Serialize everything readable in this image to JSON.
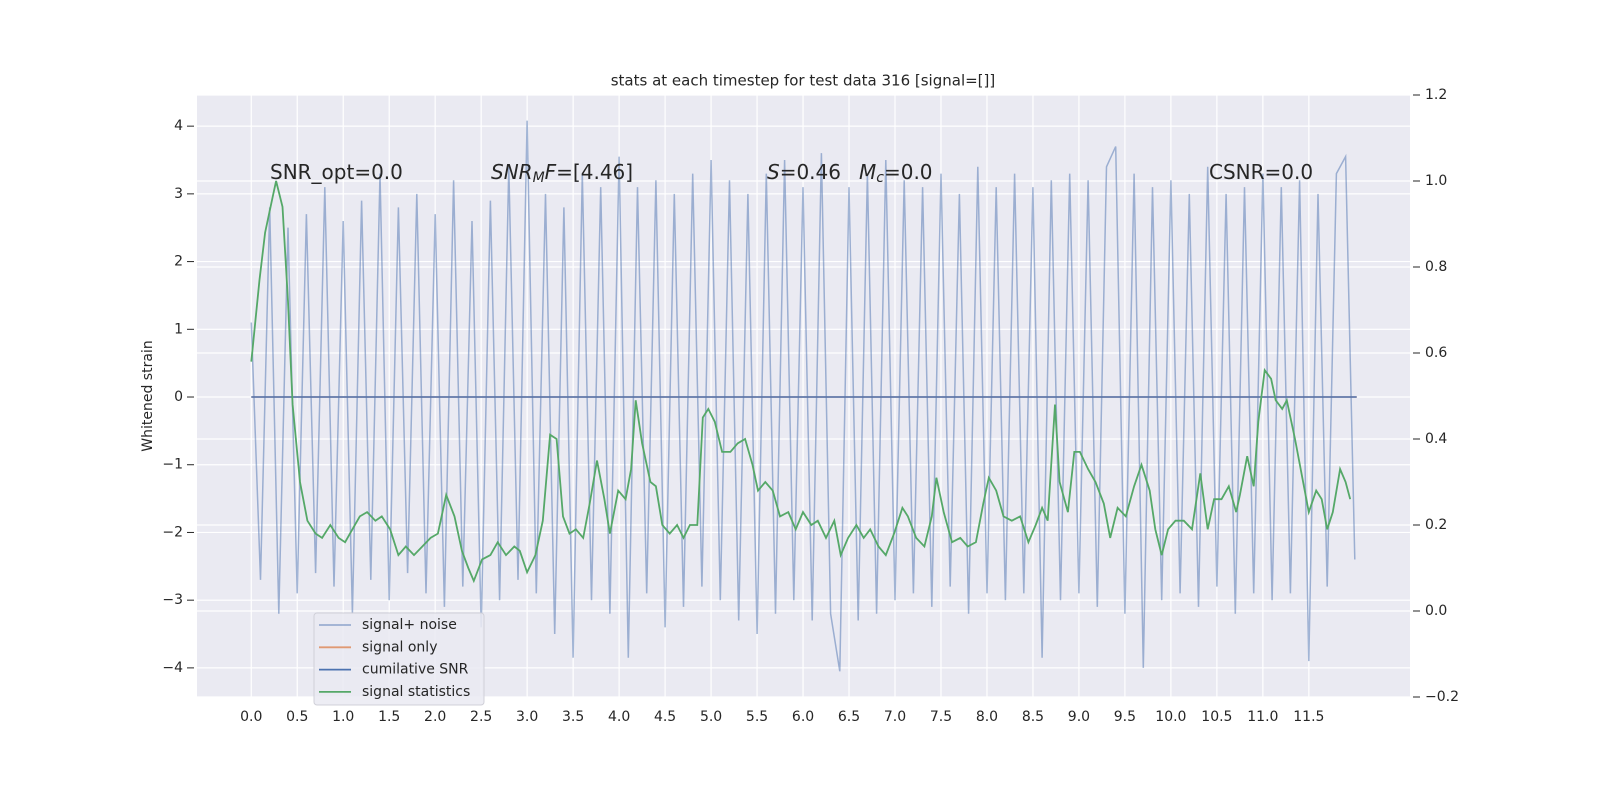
{
  "chart_data": {
    "type": "line",
    "title": "stats at each timestep for test data 316 [signal=[]]",
    "ylabel": "Whitened strain",
    "xlim": [
      -0.59,
      12.6
    ],
    "ylim": [
      -4.43,
      4.46
    ],
    "y2lim": [
      -0.2,
      1.2
    ],
    "xticks": [
      {
        "value": 0,
        "label": "0.0"
      },
      {
        "value": 0.5,
        "label": "0.5"
      },
      {
        "value": 1,
        "label": "1.0"
      },
      {
        "value": 1.5,
        "label": "1.5"
      },
      {
        "value": 2,
        "label": "2.0"
      },
      {
        "value": 2.5,
        "label": "2.5"
      },
      {
        "value": 3,
        "label": "3.0"
      },
      {
        "value": 3.5,
        "label": "3.5"
      },
      {
        "value": 4,
        "label": "4.0"
      },
      {
        "value": 4.5,
        "label": "4.5"
      },
      {
        "value": 5,
        "label": "5.0"
      },
      {
        "value": 5.5,
        "label": "5.5"
      },
      {
        "value": 6,
        "label": "6.0"
      },
      {
        "value": 6.5,
        "label": "6.5"
      },
      {
        "value": 7,
        "label": "7.0"
      },
      {
        "value": 7.5,
        "label": "7.5"
      },
      {
        "value": 8,
        "label": "8.0"
      },
      {
        "value": 8.5,
        "label": "8.5"
      },
      {
        "value": 9,
        "label": "9.0"
      },
      {
        "value": 9.5,
        "label": "9.5"
      },
      {
        "value": 10,
        "label": "10.0"
      },
      {
        "value": 10.5,
        "label": "10.5"
      },
      {
        "value": 11,
        "label": "11.0"
      },
      {
        "value": 11.5,
        "label": "11.5"
      }
    ],
    "yticks": [
      {
        "value": -4,
        "label": "−4"
      },
      {
        "value": -3,
        "label": "−3"
      },
      {
        "value": -2,
        "label": "−2"
      },
      {
        "value": -1,
        "label": "−1"
      },
      0,
      1,
      2,
      3,
      4
    ],
    "y2ticks": [
      {
        "value": -0.2,
        "label": "−0.2"
      },
      {
        "value": 0,
        "label": "0.0"
      },
      0.2,
      0.4,
      0.6,
      0.8,
      {
        "value": 1,
        "label": "1.0"
      },
      1.2
    ],
    "grid": true,
    "legend": "lower left",
    "annotations": [
      [
        {
          "t": "SNR_opt=0.0"
        }
      ],
      [
        {
          "t": "SNR",
          "i": true
        },
        {
          "t": "M",
          "i": true,
          "sub": true
        },
        {
          "t": "F",
          "i": true
        },
        {
          "t": "=[4.46]"
        }
      ],
      [
        {
          "t": "S",
          "i": true
        },
        {
          "t": "=0.46"
        }
      ],
      [
        {
          "t": "M",
          "i": true
        },
        {
          "t": "c",
          "i": true,
          "sub": true
        },
        {
          "t": "=0.0"
        }
      ],
      [
        {
          "t": "CSNR=0.0"
        }
      ]
    ],
    "series": [
      {
        "name": "signal+ noise",
        "color": "#4c72b0",
        "opacity": 0.5,
        "x": [
          0,
          0.1,
          0.2,
          0.3,
          0.4,
          0.5,
          0.6,
          0.7,
          0.8,
          0.9,
          1,
          1.1,
          1.2,
          1.3,
          1.4,
          1.5,
          1.6,
          1.7,
          1.8,
          1.9,
          2,
          2.1,
          2.2,
          2.3,
          2.4,
          2.5,
          2.6,
          2.7,
          2.8,
          2.9,
          3,
          3.1,
          3.2,
          3.3,
          3.4,
          3.5,
          3.6,
          3.7,
          3.8,
          3.9,
          4,
          4.1,
          4.2,
          4.3,
          4.4,
          4.5,
          4.6,
          4.7,
          4.8,
          4.9,
          5,
          5.1,
          5.2,
          5.3,
          5.4,
          5.5,
          5.6,
          5.7,
          5.8,
          5.9,
          6,
          6.1,
          6.2,
          6.3,
          6.4,
          6.5,
          6.6,
          6.7,
          6.8,
          6.9,
          7,
          7.1,
          7.2,
          7.3,
          7.4,
          7.5,
          7.6,
          7.7,
          7.8,
          7.9,
          8,
          8.1,
          8.2,
          8.3,
          8.4,
          8.5,
          8.6,
          8.7,
          8.8,
          8.9,
          9,
          9.1,
          9.2,
          9.3,
          9.4,
          9.5,
          9.6,
          9.7,
          9.8,
          9.9,
          10,
          10.1,
          10.2,
          10.3,
          10.4,
          10.5,
          10.6,
          10.7,
          10.8,
          10.9,
          11,
          11.1,
          11.2,
          11.3,
          11.4,
          11.5,
          11.6,
          11.7,
          11.8,
          11.9,
          12
        ],
        "values": [
          1.1,
          -2.7,
          2.8,
          -3.2,
          2.5,
          -2.9,
          2.7,
          -2.6,
          3.1,
          -2.8,
          2.6,
          -3.2,
          2.9,
          -2.7,
          3.3,
          -3.0,
          2.8,
          -2.6,
          3.0,
          -2.9,
          2.7,
          -3.1,
          3.2,
          -2.8,
          2.6,
          -3.4,
          2.9,
          -3.0,
          3.4,
          -2.7,
          4.08,
          -2.9,
          3.0,
          -3.5,
          2.8,
          -3.85,
          3.3,
          -3.0,
          3.1,
          -3.2,
          3.55,
          -3.85,
          3.1,
          -2.9,
          3.2,
          -3.4,
          3.0,
          -3.1,
          3.3,
          -2.8,
          3.5,
          -3.0,
          3.2,
          -3.3,
          3.0,
          -3.5,
          3.3,
          -3.2,
          3.5,
          -3.0,
          3.1,
          -3.3,
          3.6,
          -3.2,
          -4.05,
          3.1,
          -3.3,
          3.3,
          -3.2,
          3.5,
          -3.0,
          3.2,
          -2.9,
          3.1,
          -3.1,
          3.3,
          -2.8,
          3.0,
          -3.2,
          3.4,
          -2.9,
          3.1,
          -3.0,
          3.3,
          -2.9,
          3.1,
          -3.85,
          3.2,
          -3.0,
          3.3,
          -2.9,
          3.2,
          -3.1,
          3.4,
          3.7,
          -3.2,
          3.3,
          -4.0,
          3.1,
          -3.0,
          3.2,
          -2.9,
          3.0,
          -3.1,
          3.4,
          -2.8,
          3.0,
          -3.2,
          3.1,
          -2.9,
          3.3,
          -3.0,
          3.1,
          -2.9,
          3.2,
          -3.9,
          3.0,
          -2.8,
          3.3,
          3.55,
          -2.4
        ]
      },
      {
        "name": "signal only",
        "color": "#dd8452",
        "opacity": 0.8,
        "x": [
          0,
          12.02
        ],
        "values": [
          0,
          0
        ]
      },
      {
        "name": "cumilative SNR",
        "color": "#4c72b0",
        "opacity": 1,
        "x": [
          0,
          12.02
        ],
        "values": [
          0,
          0
        ]
      },
      {
        "name": "signal statistics",
        "color": "#55a868",
        "opacity": 1,
        "axis": "y2",
        "x": [
          0,
          0.09,
          0.15,
          0.23,
          0.27,
          0.34,
          0.4,
          0.45,
          0.53,
          0.61,
          0.7,
          0.77,
          0.86,
          0.95,
          1.02,
          1.1,
          1.18,
          1.26,
          1.35,
          1.42,
          1.51,
          1.6,
          1.68,
          1.77,
          1.86,
          1.95,
          2.03,
          2.12,
          2.21,
          2.29,
          2.36,
          2.42,
          2.51,
          2.6,
          2.68,
          2.77,
          2.86,
          2.92,
          3,
          3.09,
          3.17,
          3.25,
          3.32,
          3.39,
          3.46,
          3.53,
          3.61,
          3.68,
          3.76,
          3.84,
          3.9,
          3.99,
          4.07,
          4.13,
          4.18,
          4.25,
          4.34,
          4.4,
          4.47,
          4.55,
          4.63,
          4.7,
          4.77,
          4.85,
          4.91,
          4.97,
          5.04,
          5.12,
          5.21,
          5.29,
          5.37,
          5.45,
          5.51,
          5.59,
          5.67,
          5.75,
          5.84,
          5.92,
          6,
          6.09,
          6.16,
          6.25,
          6.34,
          6.41,
          6.49,
          6.58,
          6.66,
          6.73,
          6.82,
          6.9,
          6.99,
          7.08,
          7.14,
          7.23,
          7.32,
          7.4,
          7.45,
          7.53,
          7.62,
          7.71,
          7.79,
          7.88,
          7.96,
          8.02,
          8.1,
          8.18,
          8.27,
          8.36,
          8.45,
          8.53,
          8.6,
          8.66,
          8.74,
          8.79,
          8.88,
          8.95,
          9.01,
          9.1,
          9.18,
          9.27,
          9.34,
          9.42,
          9.51,
          9.6,
          9.68,
          9.77,
          9.83,
          9.9,
          9.97,
          10.05,
          10.14,
          10.23,
          10.32,
          10.4,
          10.47,
          10.55,
          10.63,
          10.71,
          10.75,
          10.83,
          10.9,
          10.95,
          11.02,
          11.09,
          11.14,
          11.21,
          11.26,
          11.35,
          11.42,
          11.5,
          11.58,
          11.64,
          11.7,
          11.76,
          11.84,
          11.9,
          11.95
        ],
        "values": [
          0.58,
          0.77,
          0.88,
          0.96,
          1.0,
          0.94,
          0.72,
          0.48,
          0.3,
          0.21,
          0.18,
          0.17,
          0.2,
          0.17,
          0.16,
          0.19,
          0.22,
          0.23,
          0.21,
          0.22,
          0.19,
          0.13,
          0.15,
          0.13,
          0.15,
          0.17,
          0.18,
          0.27,
          0.22,
          0.14,
          0.1,
          0.07,
          0.12,
          0.13,
          0.16,
          0.13,
          0.15,
          0.14,
          0.09,
          0.13,
          0.21,
          0.41,
          0.4,
          0.22,
          0.18,
          0.19,
          0.17,
          0.25,
          0.35,
          0.26,
          0.18,
          0.28,
          0.26,
          0.33,
          0.49,
          0.39,
          0.3,
          0.29,
          0.2,
          0.18,
          0.2,
          0.17,
          0.2,
          0.2,
          0.45,
          0.47,
          0.44,
          0.37,
          0.37,
          0.39,
          0.4,
          0.34,
          0.28,
          0.3,
          0.28,
          0.22,
          0.23,
          0.19,
          0.23,
          0.2,
          0.21,
          0.17,
          0.21,
          0.13,
          0.17,
          0.2,
          0.17,
          0.19,
          0.15,
          0.13,
          0.18,
          0.24,
          0.22,
          0.17,
          0.15,
          0.22,
          0.31,
          0.23,
          0.16,
          0.17,
          0.15,
          0.16,
          0.25,
          0.31,
          0.28,
          0.22,
          0.21,
          0.22,
          0.16,
          0.2,
          0.24,
          0.21,
          0.48,
          0.3,
          0.23,
          0.37,
          0.37,
          0.33,
          0.3,
          0.25,
          0.17,
          0.24,
          0.22,
          0.29,
          0.34,
          0.28,
          0.19,
          0.13,
          0.19,
          0.21,
          0.21,
          0.19,
          0.32,
          0.19,
          0.26,
          0.26,
          0.29,
          0.23,
          0.27,
          0.36,
          0.29,
          0.44,
          0.56,
          0.54,
          0.49,
          0.47,
          0.49,
          0.4,
          0.32,
          0.23,
          0.28,
          0.26,
          0.19,
          0.23,
          0.33,
          0.3,
          0.26
        ]
      }
    ]
  }
}
